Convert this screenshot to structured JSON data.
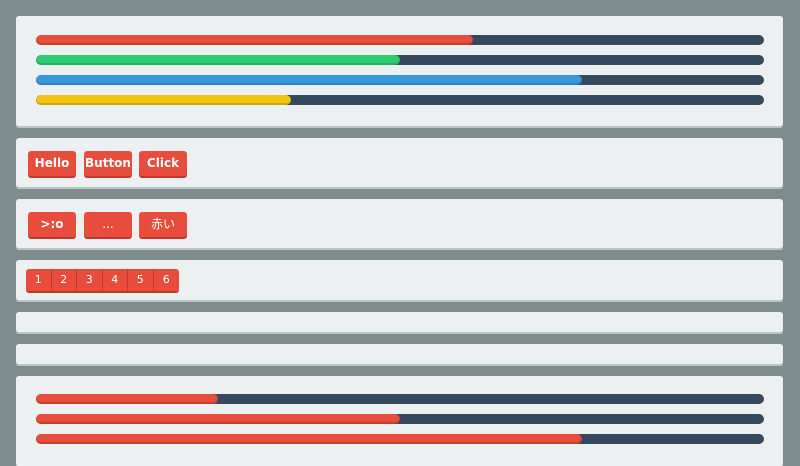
{
  "colors": {
    "background": "#7f8c8d",
    "panel": "#ecf0f1",
    "track": "#34495e",
    "red": "#e74c3c",
    "green": "#2ecc71",
    "blue": "#3498db",
    "yellow": "#f1c40f"
  },
  "progress_top": [
    {
      "color": "#e74c3c",
      "percent": 60
    },
    {
      "color": "#2ecc71",
      "percent": 50
    },
    {
      "color": "#3498db",
      "percent": 75
    },
    {
      "color": "#f1c40f",
      "percent": 35
    }
  ],
  "buttons_row1": [
    {
      "label": "Hello"
    },
    {
      "label": "Button"
    },
    {
      "label": "Click"
    }
  ],
  "buttons_row2": [
    {
      "label": ">:o"
    },
    {
      "label": "..."
    },
    {
      "label": "赤い"
    }
  ],
  "pagination": [
    "1",
    "2",
    "3",
    "4",
    "5",
    "6"
  ],
  "progress_bottom": [
    {
      "color": "#e74c3c",
      "percent": 25
    },
    {
      "color": "#e74c3c",
      "percent": 50
    },
    {
      "color": "#e74c3c",
      "percent": 75
    }
  ]
}
